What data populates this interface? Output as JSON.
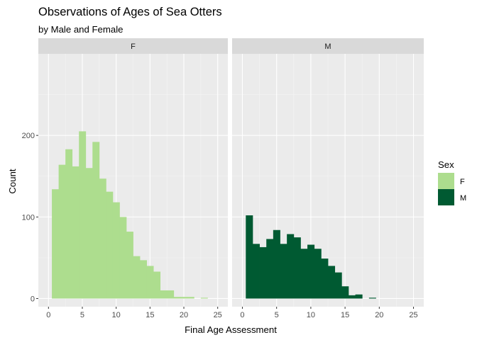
{
  "chart_data": {
    "type": "bar",
    "title": "Observations of Ages of Sea Otters",
    "subtitle": "by Male and Female",
    "xlabel": "Final Age Assessment",
    "ylabel": "Count",
    "xlim": [
      -1.5,
      26.5
    ],
    "ylim": [
      -10,
      300
    ],
    "x_ticks": [
      0,
      5,
      10,
      15,
      20,
      25
    ],
    "y_ticks": [
      0,
      100,
      200
    ],
    "bin_width": 1,
    "grid": true,
    "legend": {
      "title": "Sex",
      "placement": "right",
      "entries": [
        {
          "label": "F",
          "color": "#addd8e"
        },
        {
          "label": "M",
          "color": "#005a32"
        }
      ]
    },
    "panels": [
      {
        "strip": "F",
        "color": "#addd8e",
        "bin_centers": [
          1,
          2,
          3,
          4,
          5,
          6,
          7,
          8,
          9,
          10,
          11,
          12,
          13,
          14,
          15,
          16,
          17,
          18,
          19,
          20,
          21,
          22,
          23,
          24
        ],
        "counts": [
          134,
          164,
          183,
          162,
          205,
          160,
          192,
          147,
          131,
          118,
          100,
          82,
          52,
          47,
          40,
          33,
          10,
          10,
          2,
          2,
          2,
          0,
          1,
          0
        ]
      },
      {
        "strip": "M",
        "color": "#005a32",
        "bin_centers": [
          1,
          2,
          3,
          4,
          5,
          6,
          7,
          8,
          9,
          10,
          11,
          12,
          13,
          14,
          15,
          16,
          17,
          18,
          19,
          20,
          21,
          22,
          23,
          24
        ],
        "counts": [
          102,
          67,
          63,
          73,
          84,
          67,
          79,
          75,
          61,
          66,
          61,
          49,
          40,
          32,
          15,
          4,
          5,
          0,
          1,
          0,
          0,
          0,
          0,
          0
        ]
      }
    ]
  }
}
